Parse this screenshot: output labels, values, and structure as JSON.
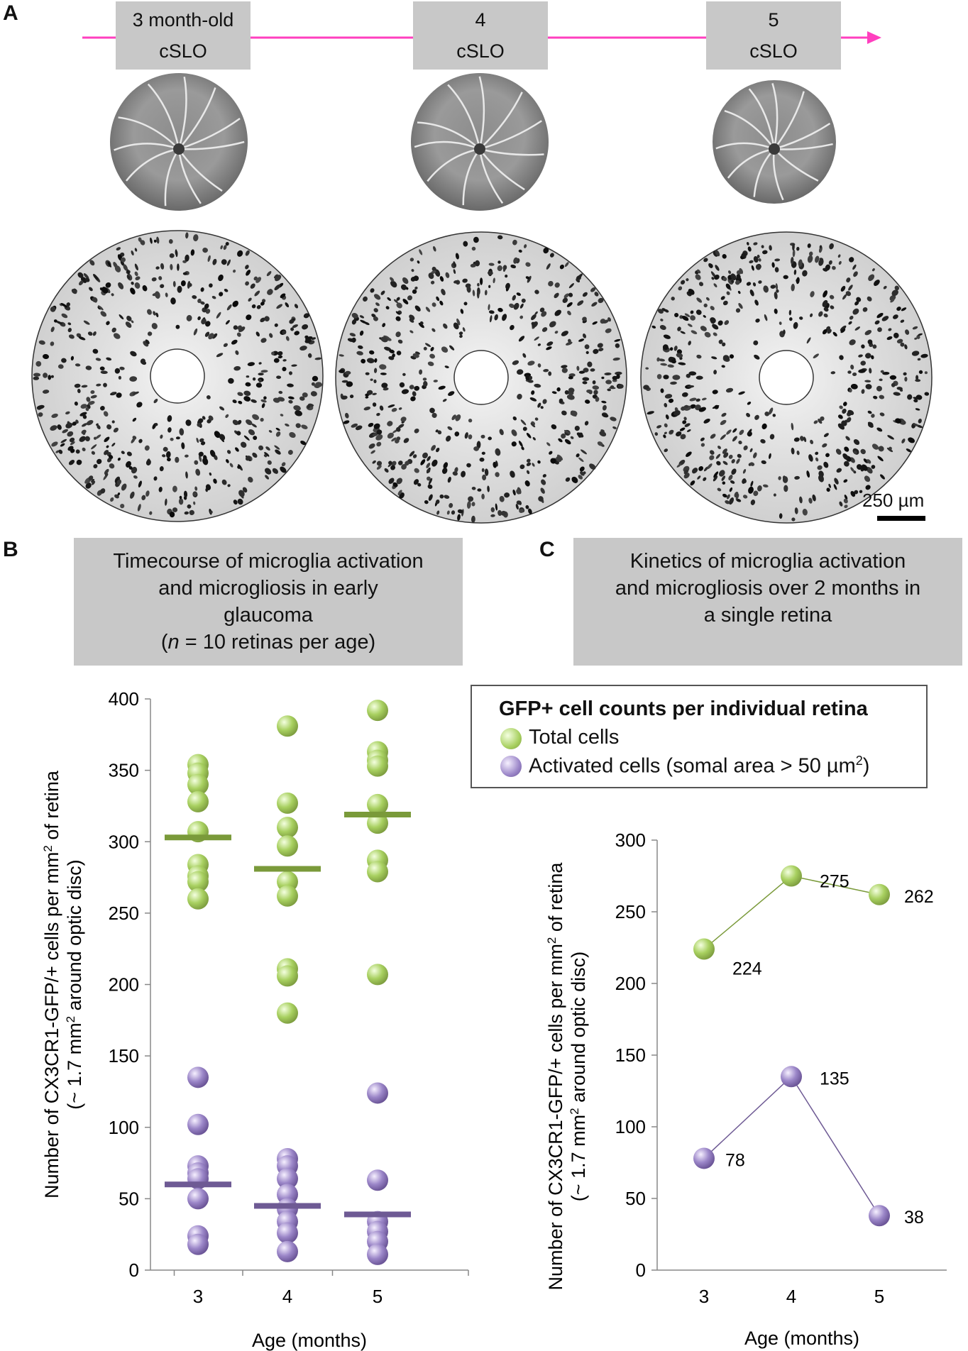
{
  "panel_labels": {
    "a": "A",
    "b": "B",
    "c": "C"
  },
  "timeline": {
    "boxes": [
      {
        "line1": "3 month-old",
        "line2": "cSLO"
      },
      {
        "line1": "4",
        "line2": "cSLO"
      },
      {
        "line1": "5",
        "line2": "cSLO"
      }
    ],
    "arrow_color": "#ff3fbf"
  },
  "scale_bar_label": "250 µm",
  "panel_b": {
    "title_lines": [
      "Timecourse of microglia activation",
      "and microgliosis in early",
      "glaucoma"
    ],
    "n_prefix": "(",
    "n_italic": "n",
    "n_suffix": " = 10 retinas per age)"
  },
  "panel_c": {
    "title_lines": [
      "Kinetics of microglia activation",
      "and microgliosis over 2 months in",
      "a single retina"
    ]
  },
  "legend": {
    "title": "GFP+ cell counts per individual retina",
    "items": [
      {
        "label": "Total cells",
        "color": "#a8d060"
      },
      {
        "label_prefix": "Activated cells (somal area > 50 µm",
        "label_sup": "2",
        "label_suffix": ")",
        "color": "#9b86c8"
      }
    ]
  },
  "colors": {
    "total": "#a8d060",
    "activated": "#9b86c8",
    "total_mean": "#7a9a3a",
    "activated_mean": "#6e5a94"
  },
  "chart_data": [
    {
      "type": "scatter",
      "title": "Timecourse of microglia activation and microgliosis in early glaucoma",
      "xlabel": "Age (months)",
      "ylabel_line1": "Number of CX3CR1-GFP/+ cells per mm",
      "ylabel_sup1": "2",
      "ylabel_line1_end": " of retina",
      "ylabel_line2": "(~ 1.7 mm",
      "ylabel_sup2": "2",
      "ylabel_line2_end": "  around optic disc)",
      "categories": [
        "3",
        "4",
        "5"
      ],
      "ylim": [
        0,
        400
      ],
      "yticks": [
        0,
        50,
        100,
        150,
        200,
        250,
        300,
        350,
        400
      ],
      "series": [
        {
          "name": "Total cells",
          "values": [
            [
              354,
              348,
              340,
              328,
              307,
              284,
              276,
              272,
              260
            ],
            [
              381,
              327,
              310,
              297,
              272,
              262,
              211,
              206,
              180
            ],
            [
              392,
              363,
              357,
              353,
              326,
              313,
              287,
              279,
              207
            ]
          ],
          "means": [
            303,
            281,
            319
          ]
        },
        {
          "name": "Activated cells",
          "values": [
            [
              135,
              102,
              73,
              68,
              64,
              50,
              24,
              18
            ],
            [
              78,
              73,
              64,
              53,
              43,
              34,
              26,
              13
            ],
            [
              124,
              63,
              34,
              27,
              20,
              11
            ]
          ],
          "means": [
            60,
            45,
            39
          ]
        }
      ]
    },
    {
      "type": "line",
      "title": "Kinetics of microglia activation and microgliosis over 2 months in a single retina",
      "xlabel": "Age (months)",
      "ylabel_line1": "Number of CX3CR1-GFP/+ cells per mm",
      "ylabel_sup1": "2",
      "ylabel_line1_end": " of retina",
      "ylabel_line2": "(~ 1.7 mm",
      "ylabel_sup2": "2",
      "ylabel_line2_end": "  around optic disc)",
      "categories": [
        "3",
        "4",
        "5"
      ],
      "ylim": [
        0,
        300
      ],
      "yticks": [
        0,
        50,
        100,
        150,
        200,
        250,
        300
      ],
      "series": [
        {
          "name": "Total cells",
          "values": [
            224,
            275,
            262
          ]
        },
        {
          "name": "Activated cells",
          "values": [
            78,
            135,
            38
          ]
        }
      ]
    }
  ]
}
